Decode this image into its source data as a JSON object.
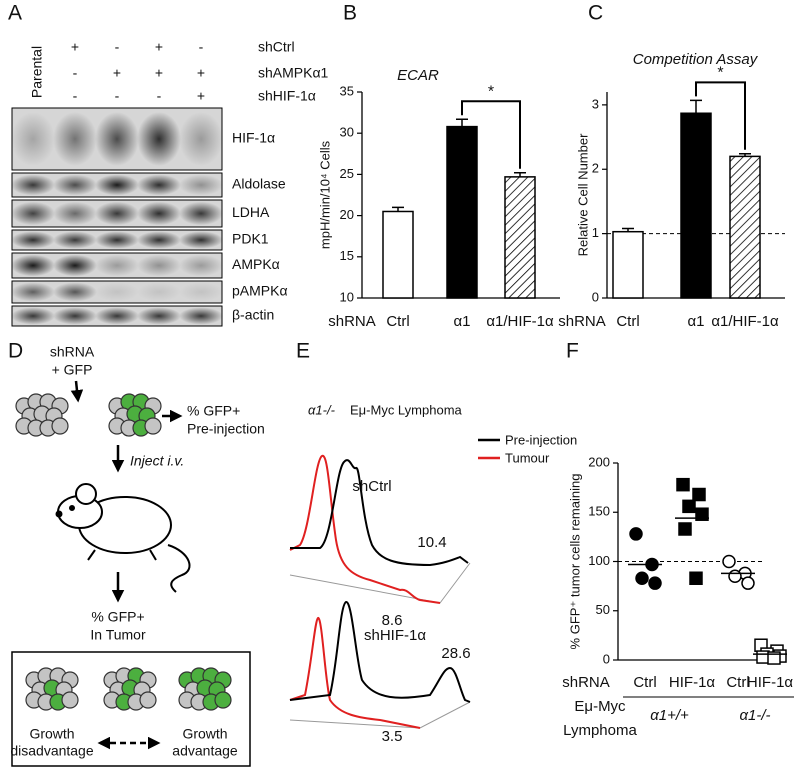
{
  "panel_labels": [
    "A",
    "B",
    "C",
    "D",
    "E",
    "F"
  ],
  "blot": {
    "lane_label": "Parental",
    "conditions": [
      {
        "label": "shCtrl",
        "lanes": [
          "+",
          "-",
          "+",
          "-"
        ]
      },
      {
        "label": "shAMPKα1",
        "lanes": [
          "-",
          "+",
          "+",
          "+"
        ]
      },
      {
        "label": "shHIF-1α",
        "lanes": [
          "-",
          "-",
          "-",
          "+"
        ]
      }
    ],
    "proteins": [
      "HIF-1α",
      "Aldolase",
      "LDHA",
      "PDK1",
      "AMPKα",
      "pAMPKα",
      "β-actin"
    ]
  },
  "chart_data": [
    {
      "type": "bar",
      "title": "ECAR",
      "ylabel": "mpH/min/10⁴ Cells",
      "xlabel": "shRNA",
      "categories": [
        "Ctrl",
        "α1",
        "α1/HIF-1α"
      ],
      "values": [
        20.5,
        30.8,
        24.7
      ],
      "errors": [
        0.5,
        0.9,
        0.5
      ],
      "styles": [
        "open",
        "solid",
        "hatched"
      ],
      "color": "#000000",
      "ylim": [
        10,
        35
      ],
      "yticks": [
        10,
        15,
        20,
        25,
        30,
        35
      ],
      "significance": {
        "between": [
          1,
          2
        ],
        "label": "*"
      }
    },
    {
      "type": "bar",
      "title": "Competition Assay",
      "ylabel": "Relative Cell Number",
      "xlabel": "shRNA",
      "categories": [
        "Ctrl",
        "α1",
        "α1/HIF-1α"
      ],
      "values": [
        1.03,
        2.87,
        2.2
      ],
      "errors": [
        0.05,
        0.2,
        0.04
      ],
      "styles": [
        "open",
        "solid",
        "hatched"
      ],
      "color": "#000000",
      "ylim": [
        0,
        3.2
      ],
      "yticks": [
        0,
        1,
        2,
        3
      ],
      "reference_line": 1,
      "significance": {
        "between": [
          1,
          2
        ],
        "label": "*"
      }
    },
    {
      "type": "dot",
      "ylabel": "% GFP⁺ tumor cells remaining",
      "xlabel": "shRNA",
      "categories": [
        "Ctrl",
        "HIF-1α",
        "Ctrl",
        "HIF-1α"
      ],
      "values": [
        [
          128,
          97,
          83,
          78
        ],
        [
          178,
          168,
          156,
          148,
          133,
          83
        ],
        [
          100,
          88,
          85,
          78
        ],
        [
          15,
          9,
          6,
          4,
          3,
          2
        ]
      ],
      "means": [
        97,
        144,
        88,
        6
      ],
      "markers": [
        "circle",
        "square",
        "circle",
        "square"
      ],
      "filled": [
        true,
        true,
        false,
        false
      ],
      "color": "#000000",
      "ylim": [
        0,
        200
      ],
      "yticks": [
        0,
        50,
        100,
        150,
        200
      ],
      "reference_line": 100,
      "model": [
        "Eμ-Myc",
        "Lymphoma"
      ],
      "groups": [
        "α1+/+",
        "α1-/-"
      ]
    }
  ],
  "diagram": {
    "step1": [
      "shRNA",
      "+ GFP"
    ],
    "pre": [
      "% GFP+",
      "Pre-injection"
    ],
    "inject": "Inject i.v.",
    "tumor": [
      "% GFP+",
      "In Tumor"
    ],
    "outcomes": [
      [
        "Growth",
        "disadvantage"
      ],
      [
        "Growth",
        "advantage"
      ]
    ]
  },
  "flow": {
    "genotype": "α1-/-",
    "model": "Eμ-Myc Lymphoma",
    "legend": [
      {
        "name": "Pre-injection",
        "color": "#000000"
      },
      {
        "name": "Tumour",
        "color": "#e02020"
      }
    ],
    "panels": [
      {
        "label": "shCtrl",
        "pre": 10.4,
        "tumour": 8.6
      },
      {
        "label": "shHIF-1α",
        "pre": 28.6,
        "tumour": 3.5
      }
    ]
  }
}
